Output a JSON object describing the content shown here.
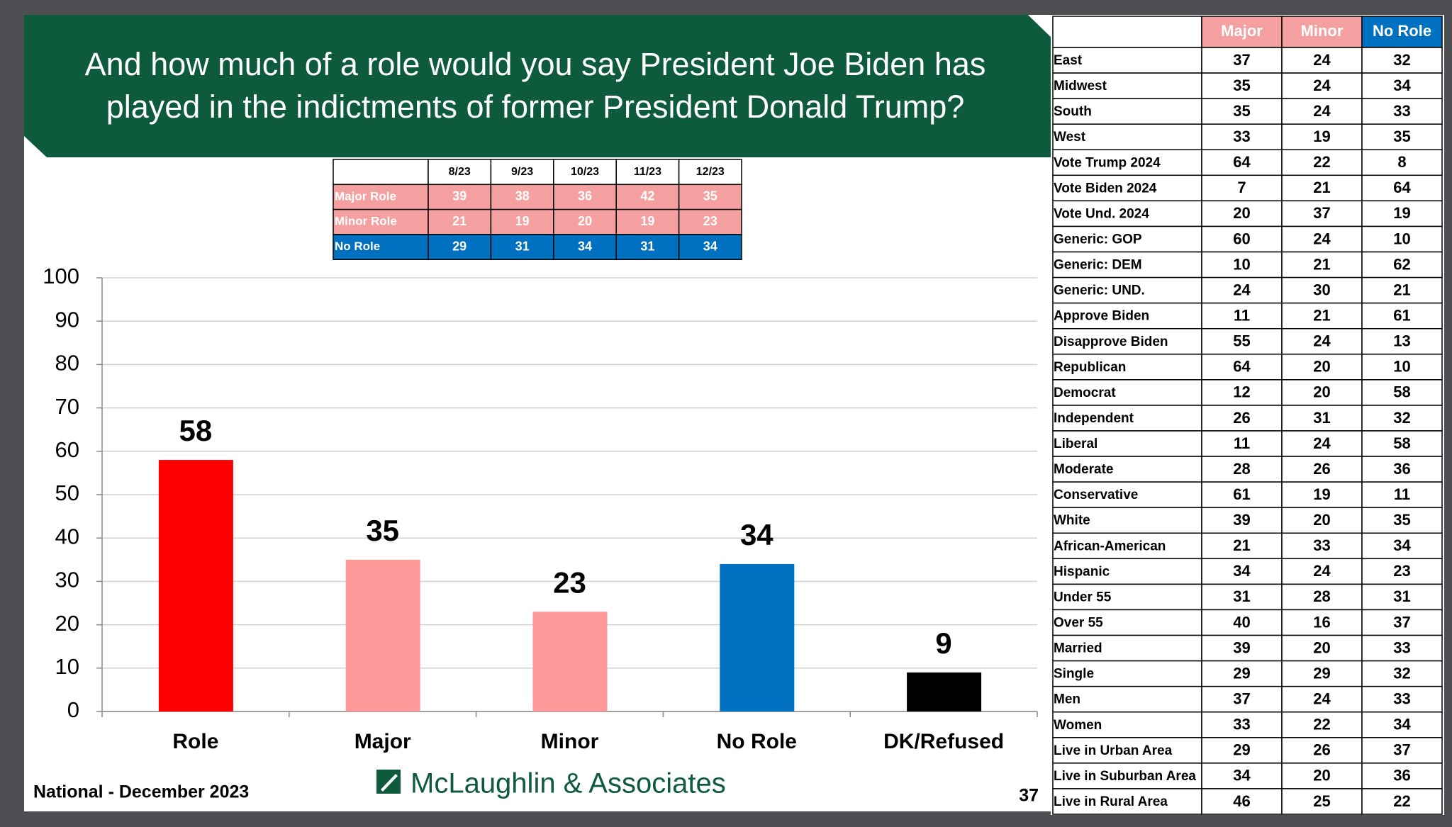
{
  "slide": {
    "title": [
      "And how much of a role would you say President Joe Biden has",
      "played in the indictments of former President Donald Trump?"
    ],
    "footer": "National - December 2023",
    "logo": "McLaughlin & Associates",
    "page": "37"
  },
  "chart_data": {
    "type": "bar",
    "categories": [
      "Role",
      "Major",
      "Minor",
      "No Role",
      "DK/Refused"
    ],
    "values": [
      58,
      35,
      23,
      34,
      9
    ],
    "colors": [
      "#ff0000",
      "#ff9a9a",
      "#ff9a9a",
      "#0070c0",
      "#000000"
    ],
    "ylim": [
      0,
      100
    ],
    "yticks": [
      0,
      10,
      20,
      30,
      40,
      50,
      60,
      70,
      80,
      90,
      100
    ],
    "grid": true
  },
  "trend_table": {
    "columns": [
      "8/23",
      "9/23",
      "10/23",
      "11/23",
      "12/23"
    ],
    "rows": [
      {
        "label": "Major Role",
        "color": "#f4a0a0",
        "values": [
          39,
          38,
          36,
          42,
          35
        ]
      },
      {
        "label": "Minor Role",
        "color": "#f4a0a0",
        "values": [
          21,
          19,
          20,
          19,
          23
        ]
      },
      {
        "label": "No Role",
        "color": "#0070c0",
        "values": [
          29,
          31,
          34,
          31,
          34
        ]
      }
    ]
  },
  "crosstab": {
    "columns": [
      "Major",
      "Minor",
      "No Role"
    ],
    "column_colors": [
      "#f4a0a0",
      "#f4a0a0",
      "#0070c0"
    ],
    "rows": [
      {
        "label": "East",
        "values": [
          37,
          24,
          32
        ]
      },
      {
        "label": "Midwest",
        "values": [
          35,
          24,
          34
        ]
      },
      {
        "label": "South",
        "values": [
          35,
          24,
          33
        ]
      },
      {
        "label": "West",
        "values": [
          33,
          19,
          35
        ]
      },
      {
        "label": "Vote Trump 2024",
        "values": [
          64,
          22,
          8
        ]
      },
      {
        "label": "Vote Biden 2024",
        "values": [
          7,
          21,
          64
        ]
      },
      {
        "label": "Vote Und. 2024",
        "values": [
          20,
          37,
          19
        ]
      },
      {
        "label": "Generic: GOP",
        "values": [
          60,
          24,
          10
        ]
      },
      {
        "label": "Generic: DEM",
        "values": [
          10,
          21,
          62
        ]
      },
      {
        "label": "Generic: UND.",
        "values": [
          24,
          30,
          21
        ]
      },
      {
        "label": "Approve Biden",
        "values": [
          11,
          21,
          61
        ]
      },
      {
        "label": "Disapprove Biden",
        "values": [
          55,
          24,
          13
        ]
      },
      {
        "label": "Republican",
        "values": [
          64,
          20,
          10
        ]
      },
      {
        "label": "Democrat",
        "values": [
          12,
          20,
          58
        ]
      },
      {
        "label": "Independent",
        "values": [
          26,
          31,
          32
        ]
      },
      {
        "label": "Liberal",
        "values": [
          11,
          24,
          58
        ]
      },
      {
        "label": "Moderate",
        "values": [
          28,
          26,
          36
        ]
      },
      {
        "label": "Conservative",
        "values": [
          61,
          19,
          11
        ]
      },
      {
        "label": "White",
        "values": [
          39,
          20,
          35
        ]
      },
      {
        "label": "African-American",
        "values": [
          21,
          33,
          34
        ]
      },
      {
        "label": "Hispanic",
        "values": [
          34,
          24,
          23
        ]
      },
      {
        "label": "Under 55",
        "values": [
          31,
          28,
          31
        ]
      },
      {
        "label": "Over 55",
        "values": [
          40,
          16,
          37
        ]
      },
      {
        "label": "Married",
        "values": [
          39,
          20,
          33
        ]
      },
      {
        "label": "Single",
        "values": [
          29,
          29,
          32
        ]
      },
      {
        "label": "Men",
        "values": [
          37,
          24,
          33
        ]
      },
      {
        "label": "Women",
        "values": [
          33,
          22,
          34
        ]
      },
      {
        "label": "Live in Urban Area",
        "values": [
          29,
          26,
          37
        ]
      },
      {
        "label": "Live in Suburban Area",
        "values": [
          34,
          20,
          36
        ]
      },
      {
        "label": "Live in Rural Area",
        "values": [
          46,
          25,
          22
        ]
      }
    ]
  }
}
